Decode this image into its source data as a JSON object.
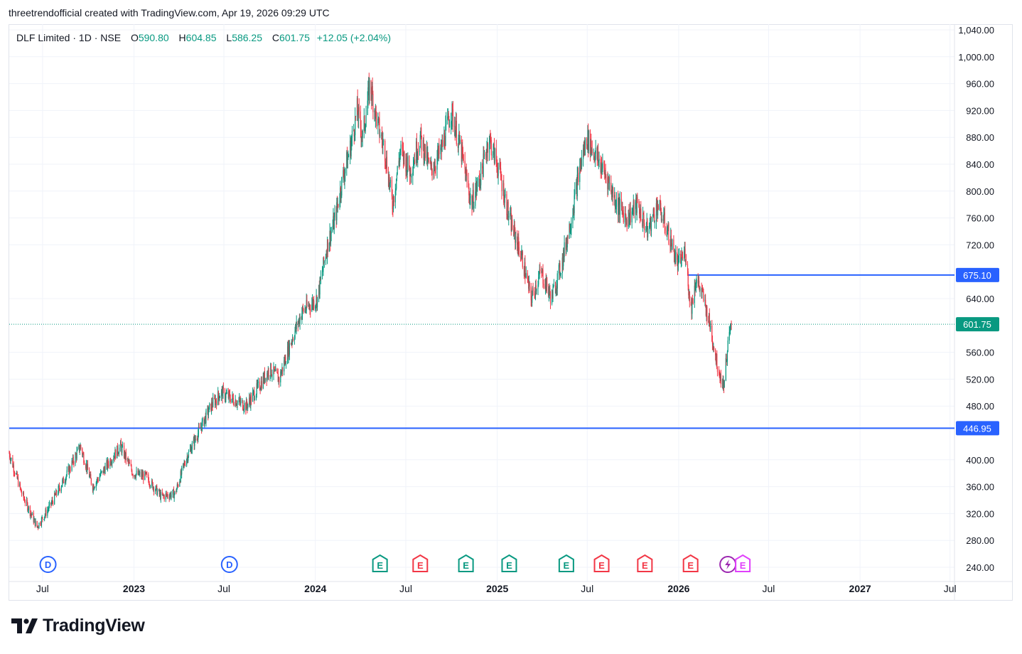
{
  "header": {
    "attribution": "threetrendofficial created with TradingView.com, Apr 19, 2026 09:29 UTC"
  },
  "legend": {
    "symbol": "DLF Limited · 1D · NSE",
    "open_key": "O",
    "open": "590.80",
    "high_key": "H",
    "high": "604.85",
    "low_key": "L",
    "low": "586.25",
    "close_key": "C",
    "close": "601.75",
    "change": "+12.05 (+2.04%)"
  },
  "footer": {
    "brand": "TradingView",
    "logo_icon": "tradingview-logo-icon"
  },
  "colors": {
    "up": "#089981",
    "down": "#f23645",
    "line": "#2962ff",
    "grid": "#f0f3fa",
    "badge_last": "#089981"
  },
  "events": [
    {
      "type": "D",
      "icon": "dividend-icon",
      "date": "2022-07-12",
      "color": "#2962ff"
    },
    {
      "type": "D",
      "icon": "dividend-icon",
      "date": "2023-07-12",
      "color": "#2962ff"
    },
    {
      "type": "E",
      "icon": "earnings-icon",
      "date": "2024-05-10",
      "color": "#089981"
    },
    {
      "type": "E",
      "icon": "earnings-icon",
      "date": "2024-07-30",
      "color": "#f23645"
    },
    {
      "type": "E",
      "icon": "earnings-icon",
      "date": "2024-10-30",
      "color": "#089981"
    },
    {
      "type": "E",
      "icon": "earnings-icon",
      "date": "2025-01-25",
      "color": "#089981"
    },
    {
      "type": "E",
      "icon": "earnings-icon",
      "date": "2025-05-20",
      "color": "#089981"
    },
    {
      "type": "E",
      "icon": "earnings-icon",
      "date": "2025-07-30",
      "color": "#f23645"
    },
    {
      "type": "E",
      "icon": "earnings-icon",
      "date": "2025-10-25",
      "color": "#f23645"
    },
    {
      "type": "E",
      "icon": "earnings-icon",
      "date": "2026-01-25",
      "color": "#f23645"
    },
    {
      "type": "S",
      "icon": "split-bolt-icon",
      "date": "2026-04-10",
      "color": "#9c27b0"
    },
    {
      "type": "E",
      "icon": "earnings-icon",
      "date": "2026-05-10",
      "color": "#e040fb"
    }
  ],
  "chart_data": {
    "type": "candlestick",
    "title": "DLF Limited · 1D · NSE",
    "y_range": [
      220,
      1050
    ],
    "y_ticks": [
      "1,040.00",
      "1,000.00",
      "960.00",
      "920.00",
      "880.00",
      "840.00",
      "800.00",
      "760.00",
      "720.00",
      "640.00",
      "560.00",
      "520.00",
      "480.00",
      "400.00",
      "360.00",
      "320.00",
      "280.00",
      "240.00"
    ],
    "y_tick_values": [
      1040,
      1000,
      960,
      920,
      880,
      840,
      800,
      760,
      720,
      640,
      560,
      520,
      480,
      400,
      360,
      320,
      280,
      240
    ],
    "x_range": [
      "2022-04-25",
      "2027-07-10"
    ],
    "x_ticks": [
      {
        "label": "Jul",
        "date": "2022-07-01",
        "year": false
      },
      {
        "label": "2023",
        "date": "2023-01-01",
        "year": true
      },
      {
        "label": "Jul",
        "date": "2023-07-01",
        "year": false
      },
      {
        "label": "2024",
        "date": "2024-01-01",
        "year": true
      },
      {
        "label": "Jul",
        "date": "2024-07-01",
        "year": false
      },
      {
        "label": "2025",
        "date": "2025-01-01",
        "year": true
      },
      {
        "label": "Jul",
        "date": "2025-07-01",
        "year": false
      },
      {
        "label": "2026",
        "date": "2026-01-01",
        "year": true
      },
      {
        "label": "Jul",
        "date": "2026-07-01",
        "year": false
      },
      {
        "label": "2027",
        "date": "2027-01-01",
        "year": true
      },
      {
        "label": "Jul",
        "date": "2027-07-01",
        "year": false
      }
    ],
    "price_path": [
      [
        "2022-04-25",
        410
      ],
      [
        "2022-05-20",
        350
      ],
      [
        "2022-06-20",
        300
      ],
      [
        "2022-07-15",
        330
      ],
      [
        "2022-08-20",
        380
      ],
      [
        "2022-09-15",
        420
      ],
      [
        "2022-10-10",
        360
      ],
      [
        "2022-11-15",
        400
      ],
      [
        "2022-12-05",
        420
      ],
      [
        "2022-12-30",
        380
      ],
      [
        "2023-01-25",
        375
      ],
      [
        "2023-02-25",
        345
      ],
      [
        "2023-03-25",
        350
      ],
      [
        "2023-04-15",
        400
      ],
      [
        "2023-05-10",
        440
      ],
      [
        "2023-06-05",
        480
      ],
      [
        "2023-06-25",
        500
      ],
      [
        "2023-07-20",
        490
      ],
      [
        "2023-08-15",
        480
      ],
      [
        "2023-09-10",
        510
      ],
      [
        "2023-10-01",
        535
      ],
      [
        "2023-10-20",
        520
      ],
      [
        "2023-11-10",
        570
      ],
      [
        "2023-12-05",
        620
      ],
      [
        "2024-01-05",
        640
      ],
      [
        "2024-01-25",
        720
      ],
      [
        "2024-02-10",
        760
      ],
      [
        "2024-02-25",
        820
      ],
      [
        "2024-03-10",
        860
      ],
      [
        "2024-03-25",
        920
      ],
      [
        "2024-04-05",
        880
      ],
      [
        "2024-04-20",
        960
      ],
      [
        "2024-05-05",
        900
      ],
      [
        "2024-05-20",
        860
      ],
      [
        "2024-06-04",
        780
      ],
      [
        "2024-06-20",
        860
      ],
      [
        "2024-07-10",
        830
      ],
      [
        "2024-07-30",
        880
      ],
      [
        "2024-08-20",
        830
      ],
      [
        "2024-09-10",
        860
      ],
      [
        "2024-09-30",
        920
      ],
      [
        "2024-10-20",
        860
      ],
      [
        "2024-11-10",
        780
      ],
      [
        "2024-12-01",
        830
      ],
      [
        "2024-12-15",
        880
      ],
      [
        "2025-01-05",
        830
      ],
      [
        "2025-01-25",
        760
      ],
      [
        "2025-02-20",
        700
      ],
      [
        "2025-03-10",
        640
      ],
      [
        "2025-03-30",
        680
      ],
      [
        "2025-04-20",
        640
      ],
      [
        "2025-05-10",
        690
      ],
      [
        "2025-05-30",
        760
      ],
      [
        "2025-06-15",
        830
      ],
      [
        "2025-06-30",
        880
      ],
      [
        "2025-07-20",
        850
      ],
      [
        "2025-08-10",
        820
      ],
      [
        "2025-08-30",
        780
      ],
      [
        "2025-09-20",
        760
      ],
      [
        "2025-10-10",
        780
      ],
      [
        "2025-10-30",
        740
      ],
      [
        "2025-11-20",
        780
      ],
      [
        "2025-12-10",
        740
      ],
      [
        "2025-12-30",
        690
      ],
      [
        "2026-01-15",
        710
      ],
      [
        "2026-01-25",
        620
      ],
      [
        "2026-02-05",
        670
      ],
      [
        "2026-02-20",
        640
      ],
      [
        "2026-03-05",
        600
      ],
      [
        "2026-03-20",
        540
      ],
      [
        "2026-04-01",
        510
      ],
      [
        "2026-04-10",
        570
      ],
      [
        "2026-04-17",
        601.75
      ]
    ],
    "h_lines": [
      {
        "value": 675.1,
        "label": "675.10",
        "from": "2026-01-20"
      },
      {
        "value": 446.95,
        "label": "446.95",
        "from": "2022-04-25"
      }
    ],
    "last_price": {
      "value": 601.75,
      "label": "601.75",
      "date": "2026-04-17"
    }
  }
}
